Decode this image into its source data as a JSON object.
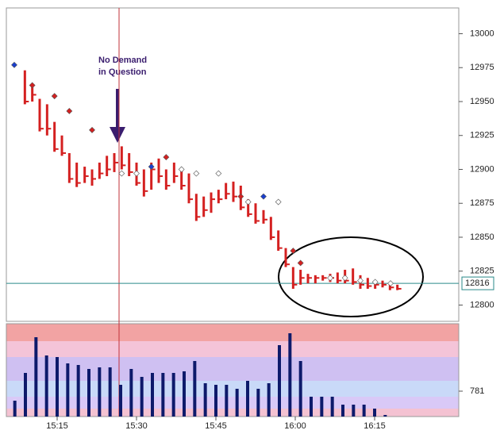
{
  "chart_data": [
    {
      "type": "ohlc",
      "x": [
        8.9,
        10.3,
        11.7,
        13.1,
        14.5,
        15.9,
        17.3,
        18.7,
        20.2,
        21.6,
        23.0,
        24.4,
        25.8,
        27.2,
        28.6,
        30.0,
        31.4,
        32.8,
        34.2,
        35.6,
        37.1,
        38.5,
        39.9,
        41.3,
        42.7,
        44.1,
        45.5,
        46.9,
        48.3,
        49.7,
        51.1,
        52.5,
        54.0,
        55.4,
        56.8,
        58.2,
        59.6,
        61.0,
        62.4,
        63.8,
        65.2,
        66.6,
        68.0,
        69.4,
        70.9,
        72.3,
        73.7,
        75.1,
        76.5,
        77.9,
        79.3
      ],
      "high": [
        12973,
        12962,
        12952,
        12948,
        12935,
        12925,
        12912,
        12905,
        12902,
        12900,
        12905,
        12910,
        12912,
        12917,
        12912,
        12905,
        12900,
        12905,
        12908,
        12900,
        12905,
        12900,
        12897,
        12882,
        12880,
        12883,
        12885,
        12890,
        12891,
        12888,
        12878,
        12875,
        12870,
        12865,
        12855,
        12842,
        12828,
        12826,
        12823,
        12822,
        12822,
        12823,
        12824,
        12826,
        12827,
        12822,
        12820,
        12818,
        12818,
        12816,
        12815
      ],
      "low": [
        12948,
        12950,
        12928,
        12925,
        12913,
        12910,
        12890,
        12887,
        12890,
        12888,
        12893,
        12895,
        12898,
        12900,
        12895,
        12888,
        12880,
        12885,
        12890,
        12885,
        12890,
        12885,
        12875,
        12862,
        12865,
        12868,
        12875,
        12878,
        12876,
        12870,
        12865,
        12860,
        12860,
        12848,
        12840,
        12828,
        12812,
        12815,
        12816,
        12816,
        12818,
        12817,
        12816,
        12816,
        12815,
        12812,
        12812,
        12812,
        12813,
        12811,
        12811
      ],
      "close": [
        12950,
        12955,
        12930,
        12930,
        12915,
        12912,
        12893,
        12890,
        12895,
        12893,
        12897,
        12900,
        12905,
        12903,
        12898,
        12890,
        12884,
        12900,
        12895,
        12888,
        12895,
        12888,
        12878,
        12865,
        12870,
        12878,
        12878,
        12882,
        12880,
        12872,
        12867,
        12862,
        12863,
        12850,
        12842,
        12830,
        12815,
        12820,
        12820,
        12820,
        12820,
        12820,
        12818,
        12818,
        12817,
        12815,
        12814,
        12815,
        12815,
        12813,
        12812
      ],
      "color": "#d42020",
      "markers": {
        "x": [
          6.9,
          10.3,
          14.5,
          17.3,
          21.6,
          27.2,
          30.0,
          32.8,
          35.6,
          38.5,
          41.3,
          45.5,
          49.7,
          51.1,
          54.0,
          56.8,
          59.6,
          61.0,
          66.6,
          69.4,
          72.3,
          75.1,
          78.0
        ],
        "values": [
          12977,
          12962,
          12954,
          12943,
          12929,
          12897,
          12897,
          12902,
          12909,
          12900,
          12897,
          12897,
          12880,
          12876,
          12880,
          12876,
          12840,
          12831,
          12820,
          12820,
          12818,
          12817,
          12816
        ],
        "colors": [
          "#1a3fcf",
          "#d42020",
          "#d42020",
          "#d42020",
          "#d42020",
          "#ffffff",
          "#ffffff",
          "#1a3fcf",
          "#d42020",
          "#ffffff",
          "#ffffff",
          "#ffffff",
          "#d42020",
          "#ffffff",
          "#1a3fcf",
          "#ffffff",
          "#d42020",
          "#d42020",
          "#ffffff",
          "#ffffff",
          "#ffffff",
          "#ffffff",
          "#ffffff"
        ]
      },
      "xlim": [
        5.4,
        90.9
      ],
      "ylim": [
        12788,
        13019
      ],
      "yticks": [
        12800,
        12825,
        12850,
        12875,
        12900,
        12925,
        12950,
        12975,
        13000
      ],
      "last_price": 12816,
      "crosshair_x": 26.7,
      "annotation": [
        "No Demand",
        "in Question"
      ]
    },
    {
      "type": "bar",
      "x": [
        7,
        9,
        11,
        13,
        15,
        17,
        19,
        21,
        23,
        25,
        27,
        29,
        31,
        33,
        35,
        37,
        39,
        41,
        43,
        45,
        47,
        49,
        51,
        53,
        55,
        57,
        59,
        61,
        63,
        65,
        67,
        69,
        71,
        73,
        75,
        77
      ],
      "values": [
        488,
        1342,
        2440,
        1879,
        1830,
        1635,
        1586,
        1464,
        1513,
        1513,
        976,
        1464,
        1220,
        1342,
        1342,
        1342,
        1391,
        1708,
        1025,
        976,
        976,
        854,
        1098,
        854,
        1025,
        2196,
        2562,
        1708,
        610,
        610,
        610,
        366,
        366,
        366,
        244,
        49
      ],
      "color": "#0d1a6b",
      "xlim": [
        5.4,
        90.9
      ],
      "ylim": [
        0,
        2855
      ],
      "yticks": [
        781
      ],
      "xticks": [
        {
          "value": 15,
          "label": "15:15"
        },
        {
          "value": 30,
          "label": "15:30"
        },
        {
          "value": 45,
          "label": "15:45"
        },
        {
          "value": 60,
          "label": "16:00"
        },
        {
          "value": 75,
          "label": "16:15"
        }
      ]
    }
  ]
}
